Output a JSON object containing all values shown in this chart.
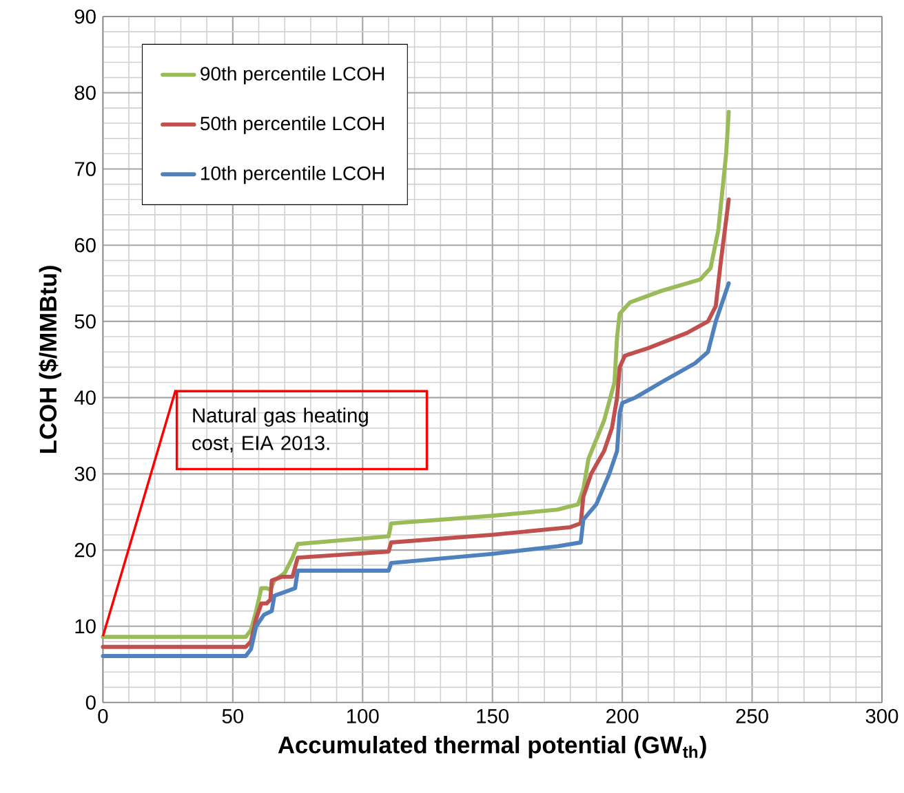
{
  "chart_data": {
    "type": "line",
    "xlabel": "Accumulated thermal potential (GW$_{th}$)",
    "ylabel": "LCOH ($/MMBtu)",
    "xlim": [
      0,
      300
    ],
    "xticks": [
      0,
      50,
      100,
      150,
      200,
      250,
      300
    ],
    "ylim": [
      0,
      90
    ],
    "yticks": [
      0,
      10,
      20,
      30,
      40,
      50,
      60,
      70,
      80,
      90
    ],
    "grid": true,
    "legend": "top left",
    "marker": "none",
    "line_style": "solid",
    "annotations": [
      {
        "text": "Natural gas heating cost, EIA 2013.",
        "x": 0,
        "y": 8.7
      }
    ],
    "series": [
      {
        "name": "90th percentile LCOH",
        "color": "#9bbb59",
        "x": [
          0,
          55,
          57,
          59,
          61,
          63,
          64.5,
          66,
          70,
          73,
          75,
          110,
          111,
          150,
          175,
          183,
          185,
          187,
          193,
          197,
          198,
          199,
          203,
          215,
          230,
          234,
          237,
          240,
          241
        ],
        "values": [
          8.6,
          8.6,
          9.5,
          12,
          15,
          15,
          14.8,
          16,
          17,
          19,
          20.8,
          21.8,
          23.5,
          24.5,
          25.3,
          26,
          28,
          32,
          37,
          42,
          48,
          51,
          52.5,
          54,
          55.5,
          57,
          62,
          72,
          77.5
        ]
      },
      {
        "name": "50th percentile LCOH",
        "color": "#c0504d",
        "x": [
          0,
          55,
          57,
          59,
          61,
          63,
          64.5,
          65,
          69,
          73,
          75,
          110,
          111,
          150,
          180,
          184,
          185,
          188,
          193,
          196,
          198,
          199,
          201,
          210,
          225,
          233,
          236,
          238,
          241
        ],
        "values": [
          7.3,
          7.3,
          8,
          11,
          13,
          13,
          13.5,
          16,
          16.5,
          16.5,
          19,
          19.8,
          21,
          22,
          23,
          23.5,
          27,
          30,
          33,
          36,
          40,
          44,
          45.5,
          46.5,
          48.5,
          50,
          52,
          58,
          66
        ]
      },
      {
        "name": "10th percentile LCOH",
        "color": "#4f81bd",
        "x": [
          0,
          55,
          57,
          59,
          62,
          65,
          66,
          70,
          74,
          75,
          110,
          111,
          150,
          175,
          184,
          185,
          190,
          195,
          198,
          199,
          200,
          205,
          215,
          228,
          233,
          236,
          239,
          241
        ],
        "values": [
          6.1,
          6.1,
          7,
          10,
          11.5,
          12,
          14,
          14.5,
          15,
          17.3,
          17.3,
          18.3,
          19.5,
          20.5,
          21,
          24,
          26,
          30,
          33,
          38,
          39.3,
          40,
          42,
          44.5,
          46,
          50,
          53,
          55
        ]
      }
    ]
  }
}
